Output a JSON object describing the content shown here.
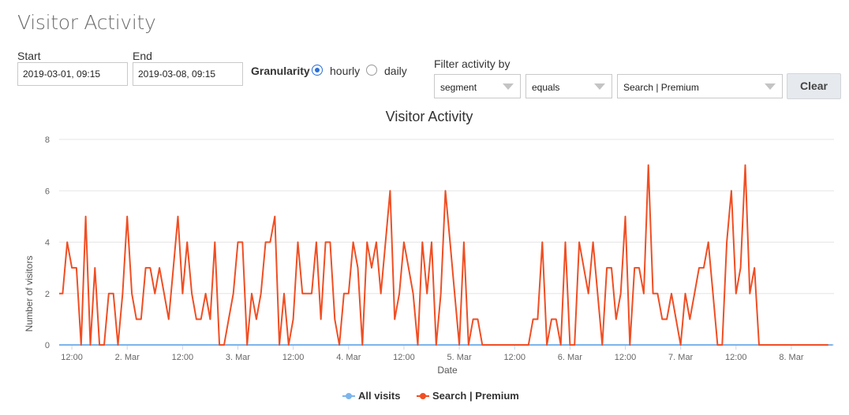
{
  "page": {
    "title": "Visitor Activity"
  },
  "controls": {
    "start": {
      "label": "Start",
      "value": "2019-03-01, 09:15"
    },
    "end": {
      "label": "End",
      "value": "2019-03-08, 09:15"
    },
    "granularity": {
      "label": "Granularity",
      "options": [
        {
          "label": "hourly",
          "selected": true
        },
        {
          "label": "daily",
          "selected": false
        }
      ]
    },
    "filter": {
      "label": "Filter activity by",
      "field": "segment",
      "operator": "equals",
      "value": "Search | Premium",
      "clear_label": "Clear"
    }
  },
  "colors": {
    "accent": "#2a6fd6",
    "series_all": "#7cb5ec",
    "series_search": "#f04e23"
  },
  "chart_data": {
    "type": "line",
    "title": "Visitor Activity",
    "xlabel": "Date",
    "ylabel": "Number of visitors",
    "ylim": [
      0,
      8
    ],
    "yticks": [
      0,
      2,
      4,
      6,
      8
    ],
    "xlim": [
      "2019-03-01T09:15",
      "2019-03-08T09:15"
    ],
    "xticks": [
      {
        "label": "12:00",
        "at": "2019-03-01T12:00"
      },
      {
        "label": "2. Mar",
        "at": "2019-03-02T00:00"
      },
      {
        "label": "12:00",
        "at": "2019-03-02T12:00"
      },
      {
        "label": "3. Mar",
        "at": "2019-03-03T00:00"
      },
      {
        "label": "12:00",
        "at": "2019-03-03T12:00"
      },
      {
        "label": "4. Mar",
        "at": "2019-03-04T00:00"
      },
      {
        "label": "12:00",
        "at": "2019-03-04T12:00"
      },
      {
        "label": "5. Mar",
        "at": "2019-03-05T00:00"
      },
      {
        "label": "12:00",
        "at": "2019-03-05T12:00"
      },
      {
        "label": "6. Mar",
        "at": "2019-03-06T00:00"
      },
      {
        "label": "12:00",
        "at": "2019-03-06T12:00"
      },
      {
        "label": "7. Mar",
        "at": "2019-03-07T00:00"
      },
      {
        "label": "12:00",
        "at": "2019-03-07T12:00"
      },
      {
        "label": "8. Mar",
        "at": "2019-03-08T00:00"
      }
    ],
    "grid": true,
    "legend": "bottom-center",
    "series_start": "2019-03-01T09:00",
    "series_interval_hours": 1,
    "series": [
      {
        "name": "All visits",
        "color": "#7cb5ec",
        "values": [
          0,
          0,
          0,
          0,
          0,
          0,
          0,
          0,
          0,
          0,
          0,
          0,
          0,
          0,
          0,
          0,
          0,
          0,
          0,
          0,
          0,
          0,
          0,
          0,
          0,
          0,
          0,
          0,
          0,
          0,
          0,
          0,
          0,
          0,
          0,
          0,
          0,
          0,
          0,
          0,
          0,
          0,
          0,
          0,
          0,
          0,
          0,
          0,
          0,
          0,
          0,
          0,
          0,
          0,
          0,
          0,
          0,
          0,
          0,
          0,
          0,
          0,
          0,
          0,
          0,
          0,
          0,
          0,
          0,
          0,
          0,
          0,
          0,
          0,
          0,
          0,
          0,
          0,
          0,
          0,
          0,
          0,
          0,
          0,
          0,
          0,
          0,
          0,
          0,
          0,
          0,
          0,
          0,
          0,
          0,
          0,
          0,
          0,
          0,
          0,
          0,
          0,
          0,
          0,
          0,
          0,
          0,
          0,
          0,
          0,
          0,
          0,
          0,
          0,
          0,
          0,
          0,
          0,
          0,
          0,
          0,
          0,
          0,
          0,
          0,
          0,
          0,
          0,
          0,
          0,
          0,
          0,
          0,
          0,
          0,
          0,
          0,
          0,
          0,
          0,
          0,
          0,
          0,
          0,
          0,
          0,
          0,
          0,
          0,
          0,
          0,
          0,
          0,
          0,
          0,
          0,
          0,
          0,
          0,
          0,
          0,
          0,
          0,
          0,
          0,
          0,
          0,
          0,
          0
        ]
      },
      {
        "name": "Search | Premium",
        "color": "#f04e23",
        "values": [
          2,
          2,
          4,
          3,
          3,
          0,
          5,
          0,
          3,
          0,
          0,
          2,
          2,
          0,
          2,
          5,
          2,
          1,
          1,
          3,
          3,
          2,
          3,
          2,
          1,
          3,
          5,
          2,
          4,
          2,
          1,
          1,
          2,
          1,
          4,
          0,
          0,
          1,
          2,
          4,
          4,
          0,
          2,
          1,
          2,
          4,
          4,
          5,
          0,
          2,
          0,
          1,
          4,
          2,
          2,
          2,
          4,
          1,
          4,
          4,
          1,
          0,
          2,
          2,
          4,
          3,
          0,
          4,
          3,
          4,
          2,
          4,
          6,
          1,
          2,
          4,
          3,
          2,
          0,
          4,
          2,
          4,
          0,
          2,
          6,
          4,
          2,
          0,
          4,
          0,
          1,
          1,
          0,
          0,
          0,
          0,
          0,
          0,
          0,
          0,
          0,
          0,
          0,
          1,
          1,
          4,
          0,
          1,
          1,
          0,
          4,
          0,
          0,
          4,
          3,
          2,
          4,
          2,
          0,
          3,
          3,
          1,
          2,
          5,
          0,
          3,
          3,
          2,
          7,
          2,
          2,
          1,
          1,
          2,
          1,
          0,
          2,
          1,
          2,
          3,
          3,
          4,
          2,
          0,
          0,
          4,
          6,
          2,
          3,
          7,
          2,
          3,
          0,
          0,
          0,
          0,
          0,
          0,
          0,
          0,
          0,
          0,
          0,
          0,
          0,
          0,
          0,
          0
        ]
      }
    ]
  }
}
